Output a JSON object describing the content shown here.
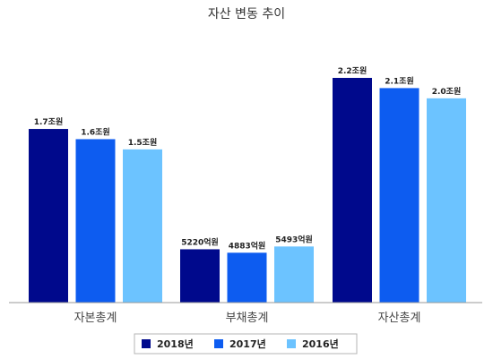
{
  "chart_data": {
    "type": "bar",
    "title": "자산 변동 추이",
    "categories": [
      "자본총계",
      "부채총계",
      "자산총계"
    ],
    "series": [
      {
        "name": "2018년",
        "color": "#00098C",
        "values": [
          17000,
          5220,
          22000
        ],
        "labels": [
          "1.7조원",
          "5220억원",
          "2.2조원"
        ]
      },
      {
        "name": "2017년",
        "color": "#0D5CF0",
        "values": [
          16000,
          4883,
          21000
        ],
        "labels": [
          "1.6조원",
          "4883억원",
          "2.1조원"
        ]
      },
      {
        "name": "2016년",
        "color": "#6CC3FF",
        "values": [
          15000,
          5493,
          20000
        ],
        "labels": [
          "1.5조원",
          "5493억원",
          "2.0조원"
        ]
      }
    ],
    "value_unit": "억원",
    "ylim": [
      0,
      23000
    ],
    "grid": false,
    "legend_position": "bottom"
  }
}
